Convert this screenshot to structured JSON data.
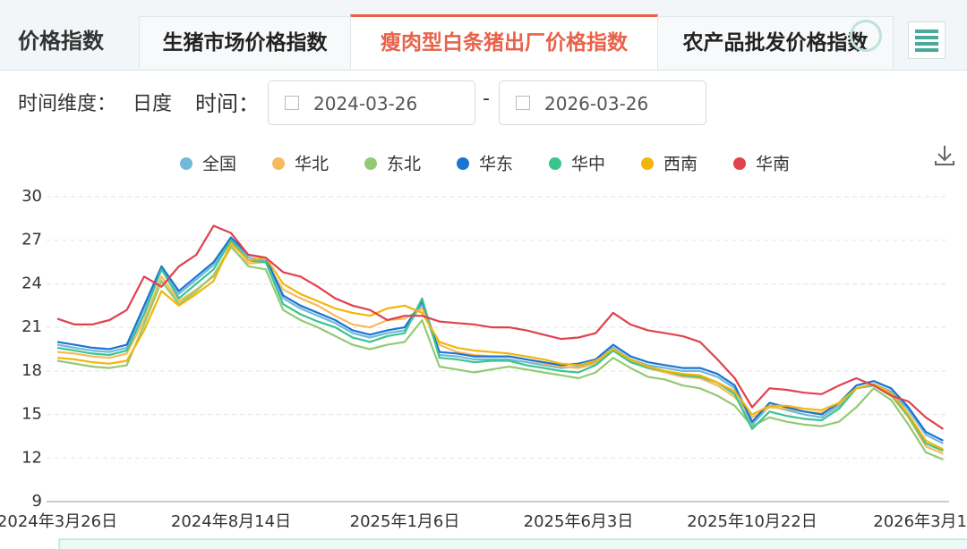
{
  "header": {
    "title": "价格指数",
    "tabs": [
      "生猪市场价格指数",
      "瘦肉型白条猪出厂价格指数",
      "农产品批发价格指数"
    ]
  },
  "filters": {
    "dimension_label": "时间维度：",
    "dimension": "日度",
    "time_label": "时间：",
    "start": "2024-03-26",
    "separator": "-",
    "end": "2026-03-26"
  },
  "chart_data": {
    "type": "line",
    "categories": [
      "2024年3月26日",
      null,
      null,
      null,
      null,
      null,
      null,
      null,
      null,
      null,
      "2024年8月14日",
      null,
      null,
      null,
      null,
      null,
      null,
      null,
      null,
      null,
      "2025年1月6日",
      null,
      null,
      null,
      null,
      null,
      null,
      null,
      null,
      null,
      "2025年6月3日",
      null,
      null,
      null,
      null,
      null,
      null,
      null,
      null,
      null,
      "2025年10月22日",
      null,
      null,
      null,
      null,
      null,
      null,
      null,
      null,
      null,
      "2026年3月1",
      null
    ],
    "ylim": [
      9,
      30
    ],
    "yticks": [
      9,
      12,
      15,
      18,
      21,
      24,
      27,
      30
    ],
    "grid": true,
    "series": [
      {
        "name": "全国",
        "color": "#73b9d8",
        "values": [
          19.8,
          19.6,
          19.4,
          19.3,
          19.6,
          22.3,
          25.0,
          23.3,
          24.3,
          25.3,
          27.0,
          25.8,
          25.6,
          23.0,
          22.3,
          21.8,
          21.3,
          20.6,
          20.3,
          20.6,
          20.8,
          22.6,
          19.1,
          19.0,
          18.8,
          18.8,
          18.8,
          18.6,
          18.4,
          18.2,
          18.3,
          18.6,
          19.6,
          18.8,
          18.4,
          18.2,
          18.0,
          18.0,
          17.6,
          16.8,
          14.3,
          15.6,
          15.3,
          15.0,
          14.8,
          15.6,
          16.8,
          17.1,
          16.6,
          15.3,
          13.6,
          13.0
        ]
      },
      {
        "name": "华北",
        "color": "#f7b95c",
        "values": [
          19.3,
          19.2,
          19.0,
          18.9,
          19.2,
          21.5,
          24.5,
          22.8,
          23.6,
          24.5,
          26.5,
          25.4,
          25.5,
          23.6,
          23.0,
          22.5,
          21.8,
          21.2,
          21.0,
          21.5,
          21.6,
          22.3,
          19.8,
          19.3,
          19.1,
          19.0,
          19.0,
          18.8,
          18.5,
          18.3,
          18.2,
          18.5,
          19.4,
          18.7,
          18.2,
          17.9,
          17.6,
          17.5,
          17.0,
          16.2,
          14.8,
          15.5,
          15.4,
          15.2,
          15.1,
          15.7,
          16.8,
          17.0,
          16.3,
          14.8,
          12.8,
          12.3
        ]
      },
      {
        "name": "东北",
        "color": "#93ca74",
        "values": [
          18.7,
          18.5,
          18.3,
          18.2,
          18.4,
          21.2,
          24.2,
          22.6,
          23.5,
          24.6,
          26.6,
          25.2,
          25.0,
          22.2,
          21.5,
          21.0,
          20.4,
          19.8,
          19.5,
          19.8,
          20.0,
          21.5,
          18.3,
          18.1,
          17.9,
          18.1,
          18.3,
          18.1,
          17.9,
          17.7,
          17.5,
          17.9,
          18.9,
          18.2,
          17.6,
          17.4,
          17.0,
          16.8,
          16.3,
          15.6,
          14.2,
          14.8,
          14.5,
          14.3,
          14.2,
          14.5,
          15.5,
          16.8,
          16.0,
          14.3,
          12.4,
          11.9
        ]
      },
      {
        "name": "华东",
        "color": "#1a74d4",
        "values": [
          20.0,
          19.8,
          19.6,
          19.5,
          19.8,
          22.5,
          25.2,
          23.5,
          24.5,
          25.5,
          27.2,
          26.0,
          25.8,
          23.2,
          22.5,
          22.0,
          21.5,
          20.8,
          20.5,
          20.8,
          21.0,
          22.8,
          19.3,
          19.2,
          19.0,
          19.0,
          19.0,
          18.8,
          18.6,
          18.4,
          18.5,
          18.8,
          19.8,
          19.0,
          18.6,
          18.4,
          18.2,
          18.2,
          17.8,
          17.0,
          14.5,
          15.8,
          15.5,
          15.2,
          15.0,
          15.8,
          17.0,
          17.3,
          16.8,
          15.5,
          13.8,
          13.2
        ]
      },
      {
        "name": "华中",
        "color": "#3cc48f",
        "values": [
          19.6,
          19.4,
          19.2,
          19.1,
          19.4,
          21.9,
          25.0,
          23.0,
          24.0,
          25.0,
          27.0,
          25.6,
          25.5,
          22.6,
          21.9,
          21.4,
          21.0,
          20.3,
          20.0,
          20.4,
          20.6,
          23.0,
          18.9,
          18.8,
          18.6,
          18.7,
          18.7,
          18.4,
          18.2,
          18.0,
          17.9,
          18.4,
          19.4,
          18.6,
          18.2,
          18.0,
          17.7,
          17.6,
          17.2,
          16.4,
          14.0,
          15.2,
          14.9,
          14.7,
          14.6,
          15.4,
          16.8,
          17.0,
          16.4,
          14.9,
          13.0,
          12.5
        ]
      },
      {
        "name": "西南",
        "color": "#f2b50a",
        "values": [
          18.9,
          18.8,
          18.6,
          18.5,
          18.7,
          20.8,
          23.5,
          22.5,
          23.3,
          24.2,
          26.8,
          25.6,
          25.8,
          24.0,
          23.3,
          22.8,
          22.3,
          22.0,
          21.8,
          22.3,
          22.5,
          22.0,
          20.0,
          19.6,
          19.4,
          19.3,
          19.2,
          19.0,
          18.8,
          18.5,
          18.4,
          18.7,
          19.5,
          18.8,
          18.3,
          18.0,
          17.8,
          17.7,
          17.2,
          16.6,
          15.0,
          15.6,
          15.6,
          15.4,
          15.3,
          15.8,
          16.8,
          17.1,
          16.5,
          15.0,
          13.2,
          12.6
        ]
      },
      {
        "name": "华南",
        "color": "#e0424f",
        "values": [
          21.6,
          21.2,
          21.2,
          21.5,
          22.2,
          24.5,
          23.8,
          25.2,
          26.0,
          28.0,
          27.5,
          26.0,
          25.8,
          24.8,
          24.5,
          23.8,
          23.0,
          22.5,
          22.2,
          21.5,
          21.8,
          21.8,
          21.4,
          21.3,
          21.2,
          21.0,
          21.0,
          20.8,
          20.5,
          20.2,
          20.3,
          20.6,
          22.0,
          21.2,
          20.8,
          20.6,
          20.4,
          20.0,
          18.8,
          17.5,
          15.5,
          16.8,
          16.7,
          16.5,
          16.4,
          17.0,
          17.5,
          17.0,
          16.3,
          15.9,
          14.8,
          14.0
        ]
      }
    ]
  }
}
